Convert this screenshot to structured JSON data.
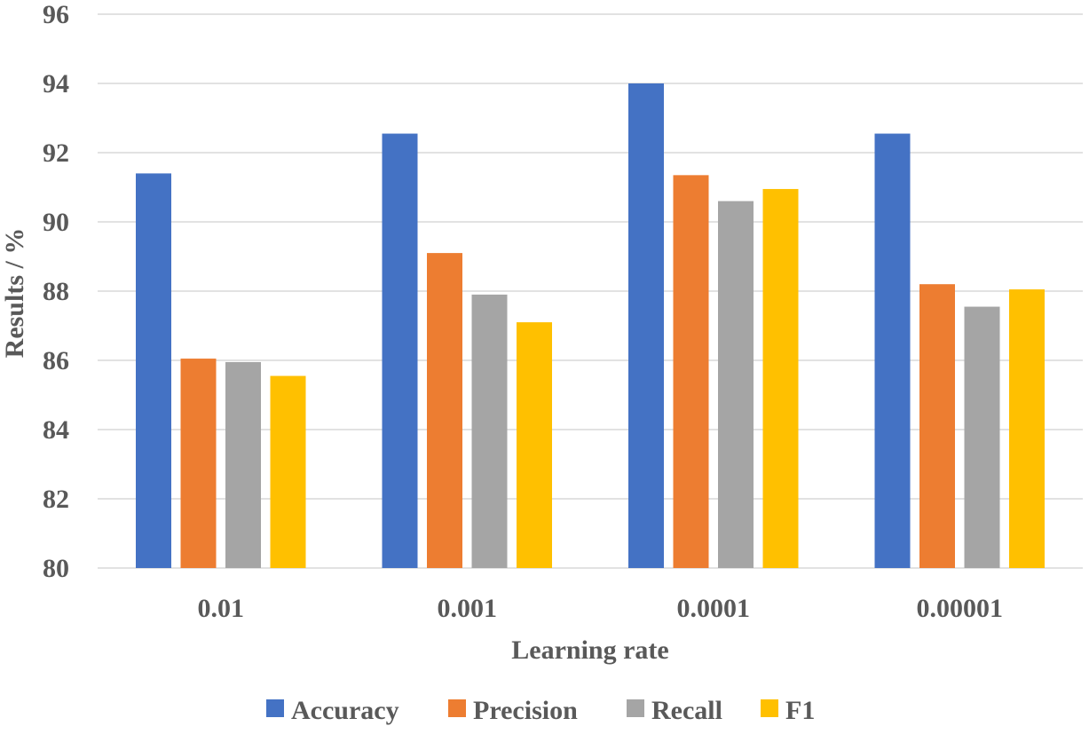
{
  "chart_data": {
    "type": "bar",
    "title": "",
    "xlabel": "Learning rate",
    "ylabel": "Results / %",
    "ylim": [
      80,
      96
    ],
    "yticks": [
      80,
      82,
      84,
      86,
      88,
      90,
      92,
      94,
      96
    ],
    "ytick_labels": [
      "80",
      "82",
      "84",
      "86",
      "88",
      "90",
      "92",
      "94",
      "96"
    ],
    "grid": true,
    "legend_position": "bottom",
    "categories": [
      "0.01",
      "0.001",
      "0.0001",
      "0.00001"
    ],
    "series": [
      {
        "name": "Accuracy",
        "color": "#4472c4",
        "values": [
          91.4,
          92.55,
          94.0,
          92.55
        ]
      },
      {
        "name": "Precision",
        "color": "#ed7d31",
        "values": [
          86.05,
          89.1,
          91.35,
          88.2
        ]
      },
      {
        "name": "Recall",
        "color": "#a5a5a5",
        "values": [
          85.95,
          87.9,
          90.6,
          87.55
        ]
      },
      {
        "name": "F1",
        "color": "#ffc000",
        "values": [
          85.55,
          87.1,
          90.95,
          88.05
        ]
      }
    ]
  }
}
